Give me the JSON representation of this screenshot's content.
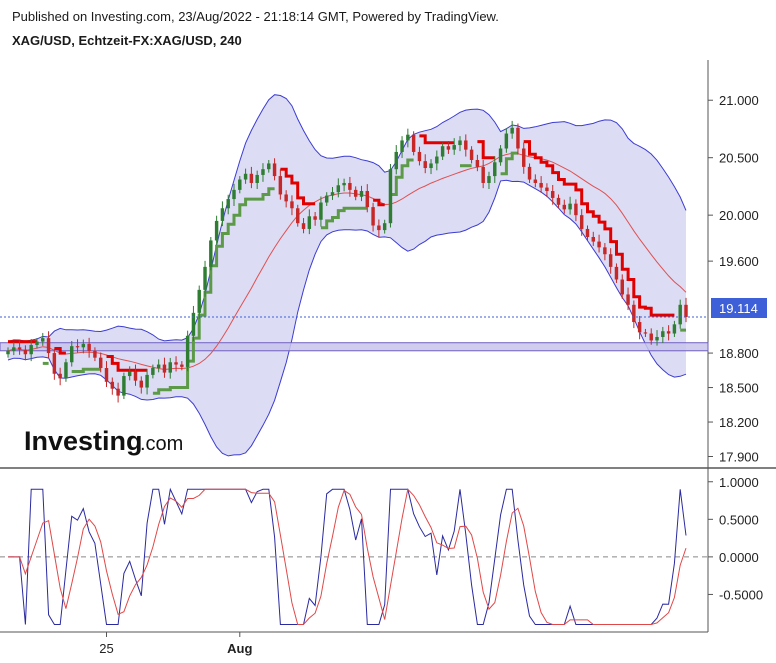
{
  "header": {
    "published": "Published on Investing.com, 23/Aug/2022 - 21:18:14 GMT, Powered by TradingView.",
    "symbol": "XAG/USD, Echtzeit-FX:XAG/USD, 240"
  },
  "logo": {
    "main": "Investing",
    "suffix": ".com"
  },
  "colors": {
    "bollinger_fill": "#dcdcf4",
    "bollinger_line": "#3c3cd2",
    "up_candle": "#2e7d32",
    "down_candle": "#c62828",
    "stop_down": "#e00000",
    "stop_up": "#5c9a48",
    "ma_line": "#e05050",
    "price_badge": "#3d5fd8",
    "support_zone": "#c8c4ec",
    "support_line": "#7060c0",
    "osc_fast": "#2a2aa0",
    "osc_slow": "#e04848"
  },
  "chart_data": [
    {
      "type": "line",
      "panel": "price",
      "y_axis_ticks": [
        "21.000",
        "20.500",
        "20.000",
        "19.600",
        "18.800",
        "18.500",
        "18.200",
        "17.900"
      ],
      "ylim": [
        17.8,
        21.35
      ],
      "x_ticks": [
        "25",
        "Aug"
      ],
      "current_price": "19.114",
      "support_zone": [
        18.82,
        18.89
      ],
      "series": [
        {
          "kind": "candles",
          "close": [
            18.82,
            18.85,
            18.83,
            18.79,
            18.87,
            18.9,
            18.93,
            18.8,
            18.62,
            18.58,
            18.72,
            18.86,
            18.85,
            18.88,
            18.82,
            18.76,
            18.67,
            18.55,
            18.49,
            18.43,
            18.6,
            18.64,
            18.56,
            18.5,
            18.61,
            18.67,
            18.7,
            18.63,
            18.72,
            18.7,
            18.68,
            18.95,
            19.15,
            19.35,
            19.55,
            19.78,
            19.95,
            20.06,
            20.14,
            20.22,
            20.31,
            20.36,
            20.28,
            20.35,
            20.4,
            20.45,
            20.34,
            20.18,
            20.12,
            20.06,
            19.93,
            19.88,
            19.99,
            19.96,
            20.11,
            20.17,
            20.2,
            20.26,
            20.28,
            20.22,
            20.16,
            20.21,
            20.07,
            19.91,
            19.87,
            19.93,
            20.4,
            20.55,
            20.65,
            20.7,
            20.55,
            20.47,
            20.41,
            20.45,
            20.51,
            20.6,
            20.57,
            20.61,
            20.65,
            20.57,
            20.48,
            20.42,
            20.28,
            20.34,
            20.46,
            20.58,
            20.71,
            20.76,
            20.58,
            20.42,
            20.31,
            20.28,
            20.24,
            20.21,
            20.15,
            20.09,
            20.05,
            20.1,
            20.0,
            19.88,
            19.81,
            19.77,
            19.72,
            19.66,
            19.55,
            19.44,
            19.31,
            19.22,
            19.07,
            18.98,
            18.97,
            18.91,
            18.94,
            18.99,
            18.97,
            19.05,
            19.22,
            19.114
          ]
        },
        {
          "kind": "bollinger",
          "name": "Bollinger Bands"
        },
        {
          "kind": "trailing_stop",
          "name": "Supertrend"
        }
      ]
    },
    {
      "type": "line",
      "panel": "oscillator",
      "y_axis_ticks": [
        "1.0000",
        "0.5000",
        "0.0000",
        "-0.5000"
      ],
      "ylim": [
        -1.0,
        1.05
      ],
      "zero_line": 0.0
    }
  ]
}
